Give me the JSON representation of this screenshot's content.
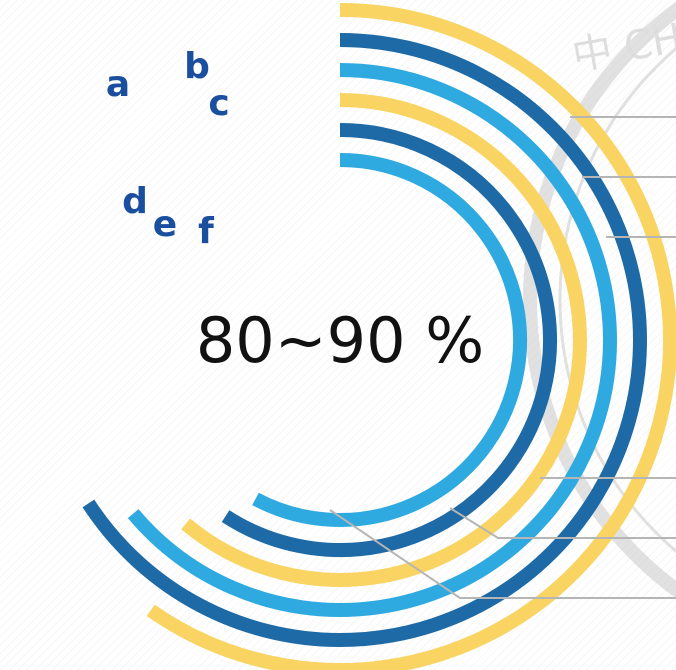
{
  "chart_data": {
    "type": "radial-bar",
    "center_label": "80~90 %",
    "series": [
      {
        "name": "a",
        "color": "#F9D462"
      },
      {
        "name": "b",
        "color": "#1E6AA6"
      },
      {
        "name": "c",
        "color": "#2FAAE1"
      },
      {
        "name": "d",
        "color": "#F9D462"
      },
      {
        "name": "e",
        "color": "#1E6AA6"
      },
      {
        "name": "f",
        "color": "#2FAAE1"
      }
    ],
    "label_color": "#1A4FA0"
  },
  "watermark": {
    "text": "中 CHINESE PR"
  }
}
